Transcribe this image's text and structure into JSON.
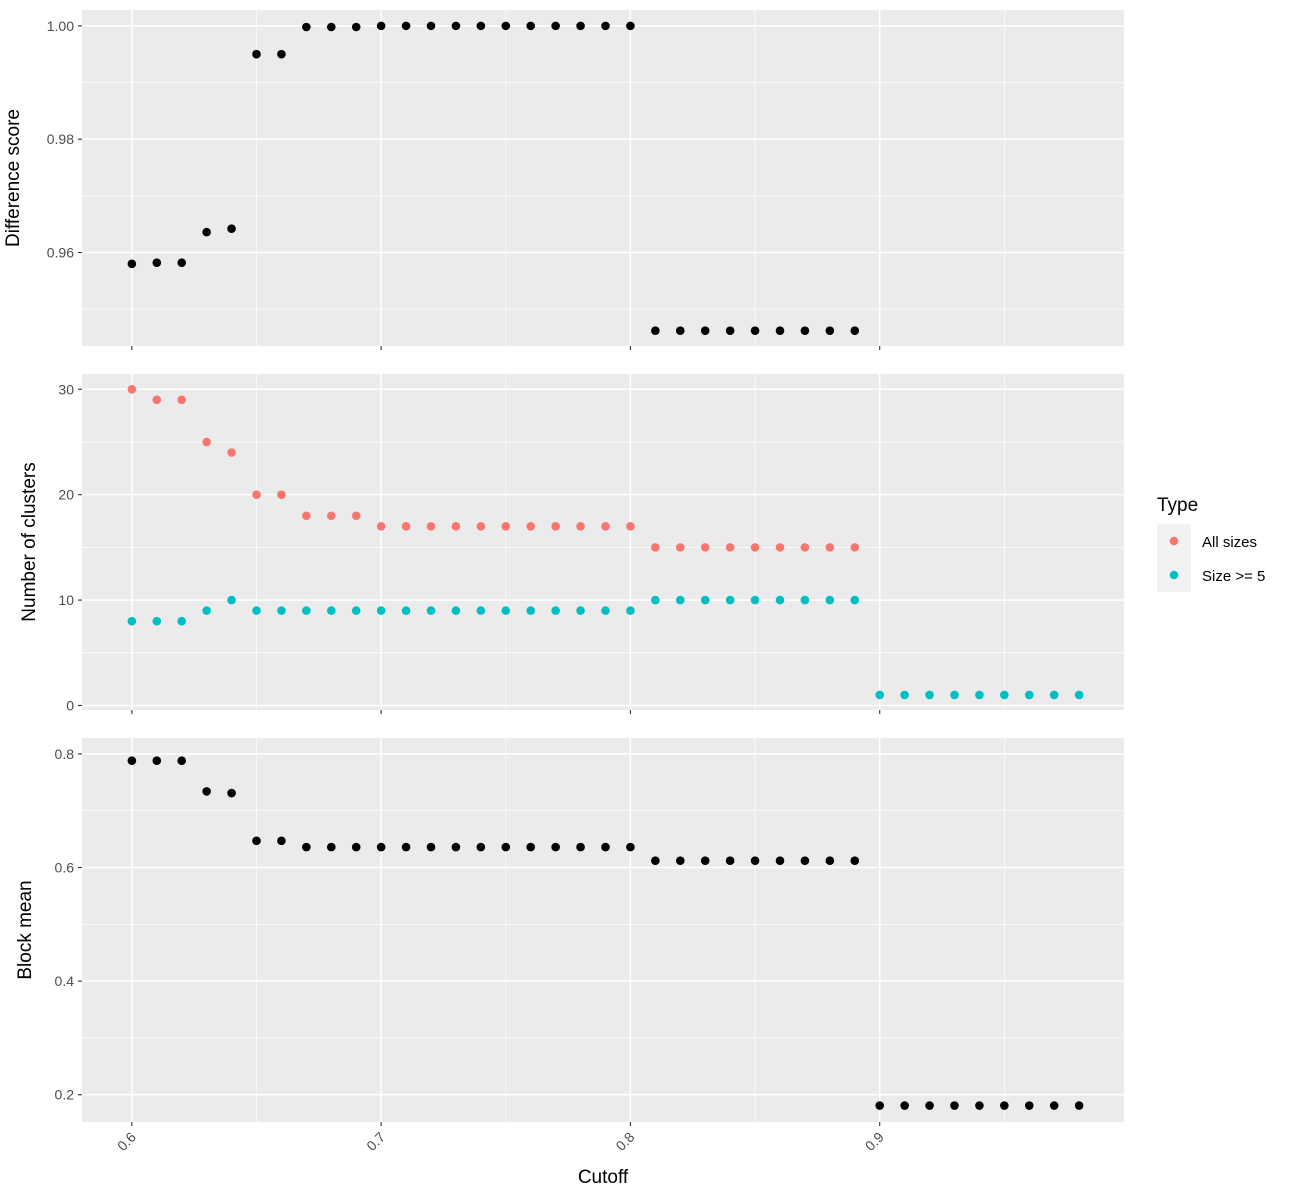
{
  "chart_data": [
    {
      "type": "scatter",
      "ylabel": "Difference score",
      "xlim": [
        0.58,
        0.998
      ],
      "ylim": [
        0.9435,
        1.0028
      ],
      "y_ticks": [
        0.96,
        0.98,
        1.0
      ],
      "y_tick_labels": [
        "0.96",
        "0.98",
        "1.00"
      ],
      "grid": true,
      "series": [
        {
          "color": "#000000",
          "x": [
            0.6,
            0.61,
            0.62,
            0.63,
            0.64,
            0.65,
            0.66,
            0.67,
            0.68,
            0.69,
            0.7,
            0.71,
            0.72,
            0.73,
            0.74,
            0.75,
            0.76,
            0.77,
            0.78,
            0.79,
            0.8,
            0.81,
            0.82,
            0.83,
            0.84,
            0.85,
            0.86,
            0.87,
            0.88,
            0.89
          ],
          "y": [
            0.958,
            0.9582,
            0.9582,
            0.9636,
            0.9642,
            0.995,
            0.995,
            0.9998,
            0.9998,
            0.9998,
            1.0,
            1.0,
            1.0,
            1.0,
            1.0,
            1.0,
            1.0,
            1.0,
            1.0,
            1.0,
            1.0,
            0.9462,
            0.9462,
            0.9462,
            0.9462,
            0.9462,
            0.9462,
            0.9462,
            0.9462,
            0.9462
          ]
        }
      ]
    },
    {
      "type": "scatter",
      "ylabel": "Number of clusters",
      "xlim": [
        0.58,
        0.998
      ],
      "ylim": [
        -0.43,
        31.45
      ],
      "y_ticks": [
        0,
        10,
        20,
        30
      ],
      "y_tick_labels": [
        "0",
        "10",
        "20",
        "30"
      ],
      "grid": true,
      "series": [
        {
          "name": "All sizes",
          "color": "#F8766D",
          "x": [
            0.6,
            0.61,
            0.62,
            0.63,
            0.64,
            0.65,
            0.66,
            0.67,
            0.68,
            0.69,
            0.7,
            0.71,
            0.72,
            0.73,
            0.74,
            0.75,
            0.76,
            0.77,
            0.78,
            0.79,
            0.8,
            0.81,
            0.82,
            0.83,
            0.84,
            0.85,
            0.86,
            0.87,
            0.88,
            0.89
          ],
          "y": [
            30,
            29,
            29,
            25,
            24,
            20,
            20,
            18,
            18,
            18,
            17,
            17,
            17,
            17,
            17,
            17,
            17,
            17,
            17,
            17,
            17,
            15,
            15,
            15,
            15,
            15,
            15,
            15,
            15,
            15
          ]
        },
        {
          "name": "Size >= 5",
          "color": "#00BFC4",
          "x": [
            0.6,
            0.61,
            0.62,
            0.63,
            0.64,
            0.65,
            0.66,
            0.67,
            0.68,
            0.69,
            0.7,
            0.71,
            0.72,
            0.73,
            0.74,
            0.75,
            0.76,
            0.77,
            0.78,
            0.79,
            0.8,
            0.81,
            0.82,
            0.83,
            0.84,
            0.85,
            0.86,
            0.87,
            0.88,
            0.89,
            0.9,
            0.91,
            0.92,
            0.93,
            0.94,
            0.95,
            0.96,
            0.97,
            0.98
          ],
          "y": [
            8,
            8,
            8,
            9,
            10,
            9,
            9,
            9,
            9,
            9,
            9,
            9,
            9,
            9,
            9,
            9,
            9,
            9,
            9,
            9,
            9,
            10,
            10,
            10,
            10,
            10,
            10,
            10,
            10,
            10,
            1,
            1,
            1,
            1,
            1,
            1,
            1,
            1,
            1
          ]
        }
      ]
    },
    {
      "type": "scatter",
      "ylabel": "Block mean",
      "xlabel": "Cutoff",
      "xlim": [
        0.58,
        0.998
      ],
      "ylim": [
        0.152,
        0.828
      ],
      "y_ticks": [
        0.2,
        0.4,
        0.6,
        0.8
      ],
      "y_tick_labels": [
        "0.2",
        "0.4",
        "0.6",
        "0.8"
      ],
      "x_ticks": [
        0.6,
        0.7,
        0.8,
        0.9
      ],
      "x_tick_labels": [
        "0.6",
        "0.7",
        "0.8",
        "0.9"
      ],
      "grid": true,
      "series": [
        {
          "color": "#000000",
          "x": [
            0.6,
            0.61,
            0.62,
            0.63,
            0.64,
            0.65,
            0.66,
            0.67,
            0.68,
            0.69,
            0.7,
            0.71,
            0.72,
            0.73,
            0.74,
            0.75,
            0.76,
            0.77,
            0.78,
            0.79,
            0.8,
            0.81,
            0.82,
            0.83,
            0.84,
            0.85,
            0.86,
            0.87,
            0.88,
            0.89,
            0.9,
            0.91,
            0.92,
            0.93,
            0.94,
            0.95,
            0.96,
            0.97,
            0.98
          ],
          "y": [
            0.788,
            0.788,
            0.788,
            0.734,
            0.731,
            0.647,
            0.647,
            0.636,
            0.636,
            0.636,
            0.636,
            0.636,
            0.636,
            0.636,
            0.636,
            0.636,
            0.636,
            0.636,
            0.636,
            0.636,
            0.636,
            0.612,
            0.612,
            0.612,
            0.612,
            0.612,
            0.612,
            0.612,
            0.612,
            0.612,
            0.181,
            0.181,
            0.181,
            0.181,
            0.181,
            0.181,
            0.181,
            0.181,
            0.181
          ]
        }
      ]
    }
  ],
  "legend": {
    "title": "Type",
    "placement": "right",
    "items": [
      {
        "label": "All sizes",
        "color": "#F8766D"
      },
      {
        "label": "Size >= 5",
        "color": "#00BFC4"
      }
    ]
  },
  "colors": {
    "panel_background": "#EBEBEB",
    "grid": "#FFFFFF",
    "axis_text": "#4D4D4D"
  }
}
